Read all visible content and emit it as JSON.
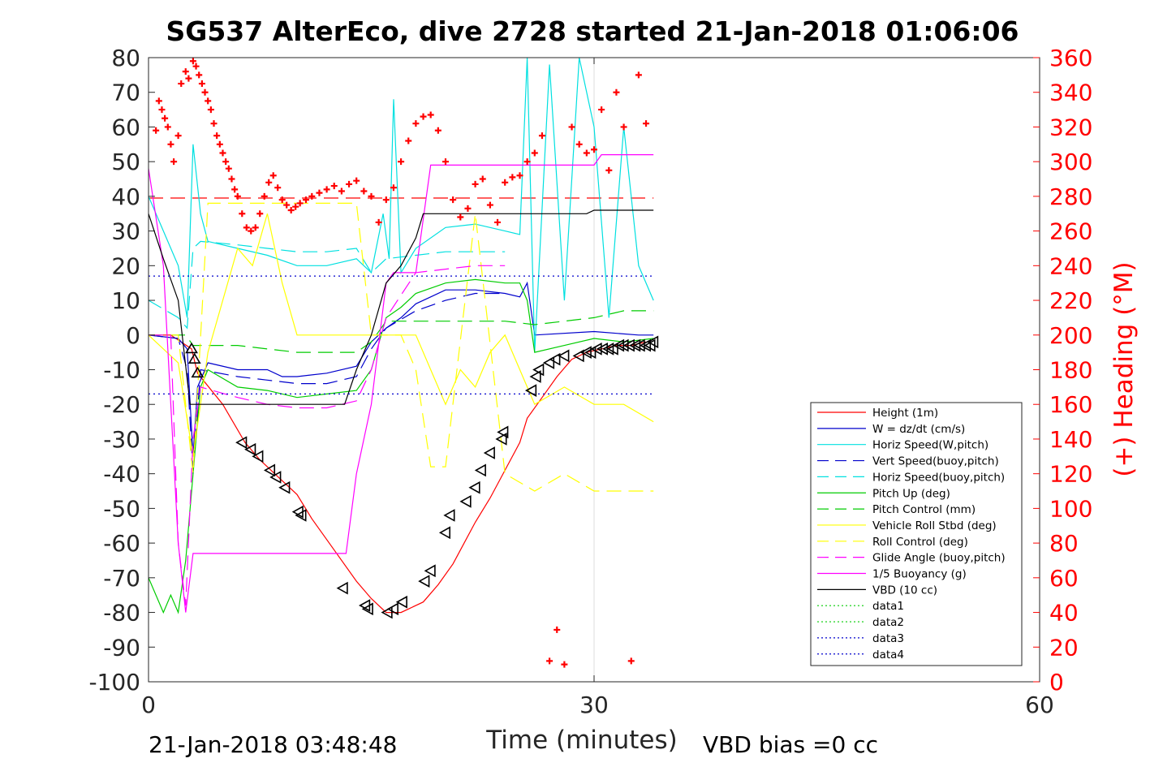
{
  "chart_data": {
    "type": "line",
    "title": "SG537 AlterEco, dive 2728 started 21-Jan-2018 01:06:06",
    "xlabel": "Time (minutes)",
    "ylabel": "",
    "y2label": "(+) Heading (°M)",
    "xlim": [
      0,
      60
    ],
    "ylim": [
      -100,
      80
    ],
    "y2lim": [
      0,
      360
    ],
    "xticks": [
      "0",
      "30",
      "60"
    ],
    "yticks": [
      "80",
      "70",
      "60",
      "50",
      "40",
      "30",
      "20",
      "10",
      "0",
      "-10",
      "-20",
      "-30",
      "-40",
      "-50",
      "-60",
      "-70",
      "-80",
      "-90",
      "-100"
    ],
    "y2ticks": [
      "360",
      "340",
      "320",
      "300",
      "280",
      "260",
      "240",
      "220",
      "200",
      "180",
      "160",
      "140",
      "120",
      "100",
      "80",
      "60",
      "40",
      "20",
      "0"
    ],
    "grid": "x only at 30",
    "legend_position": "bottom-right",
    "footer_left": "21-Jan-2018 03:48:48",
    "footer_right": "VBD bias =0 cc",
    "colors": {
      "red": "#ff0000",
      "blue": "#0000cc",
      "cyan": "#00e0e0",
      "green": "#00cc00",
      "yellow": "#ffff00",
      "magenta": "#ff00ff",
      "black": "#000000"
    },
    "series": [
      {
        "name": "Height (1m)",
        "color": "#ff0000",
        "dash": "solid",
        "x": [
          0,
          1.5,
          2.9,
          3.3,
          5,
          6.5,
          7.5,
          8.5,
          10,
          11,
          12.5,
          14,
          15,
          16,
          17,
          17.5,
          18.5,
          19.5,
          20.5,
          21,
          22,
          23,
          24,
          25,
          25.5,
          26.5,
          27.5,
          28.5,
          29.5,
          30.5,
          31.5,
          32.5,
          33.5
        ],
        "y": [
          0,
          0,
          -4,
          -11,
          -20,
          -31,
          -36,
          -40,
          -46,
          -53,
          -62,
          -71,
          -76,
          -80,
          -80,
          -79,
          -77,
          -72,
          -66,
          -62,
          -54,
          -47,
          -39,
          -31,
          -24,
          -18,
          -12,
          -7,
          -5,
          -4,
          -3,
          -3,
          -2
        ]
      },
      {
        "name": "W = dz/dt (cm/s)",
        "color": "#0000cc",
        "dash": "solid",
        "x": [
          0,
          2,
          2.6,
          3,
          3.3,
          4,
          6,
          8,
          9,
          10,
          12,
          14,
          15,
          16,
          17,
          18,
          19,
          20,
          22,
          24,
          25,
          25.5,
          26,
          30,
          33,
          34
        ],
        "y": [
          0,
          -1,
          -4,
          -35,
          -15,
          -8,
          -10,
          -10,
          -12,
          -12,
          -11,
          -9,
          -2,
          2,
          5,
          9,
          11,
          13,
          13,
          12,
          11,
          15,
          0,
          1,
          0,
          0
        ]
      },
      {
        "name": "Horiz Speed(W,pitch)",
        "color": "#00e0e0",
        "dash": "solid",
        "x": [
          0,
          2,
          2.6,
          3,
          3.5,
          4,
          6,
          8,
          10,
          12,
          14,
          15,
          15.8,
          16.2,
          16.5,
          17,
          18,
          20,
          22,
          24,
          25,
          25.5,
          26,
          27,
          28,
          29,
          30,
          31,
          32,
          33,
          34
        ],
        "y": [
          40,
          20,
          5,
          55,
          35,
          27,
          25,
          23,
          20,
          20,
          22,
          18,
          35,
          22,
          68,
          18,
          25,
          31,
          32,
          30,
          29,
          80,
          -5,
          78,
          10,
          80,
          60,
          5,
          60,
          20,
          10
        ]
      },
      {
        "name": "Vert Speed(buoy,pitch)",
        "color": "#0000cc",
        "dash": "dashed",
        "x": [
          0,
          2,
          2.6,
          3,
          3.5,
          6,
          8,
          10,
          12,
          14,
          15,
          16,
          18,
          20,
          22,
          24
        ],
        "y": [
          0,
          -1,
          -10,
          -40,
          -10,
          -12,
          -13,
          -14,
          -14,
          -12,
          -4,
          2,
          7,
          10,
          12,
          12
        ]
      },
      {
        "name": "Horiz Speed(buoy,pitch)",
        "color": "#00e0e0",
        "dash": "dashed",
        "x": [
          0,
          2,
          2.6,
          3,
          3.5,
          6,
          8,
          10,
          12,
          14,
          15,
          16,
          18,
          20,
          22,
          24
        ],
        "y": [
          10,
          5,
          2,
          25,
          27,
          26,
          25,
          24,
          24,
          25,
          18,
          22,
          23,
          24,
          24,
          24
        ]
      },
      {
        "name": "Pitch Up (deg)",
        "color": "#00cc00",
        "dash": "solid",
        "x": [
          0,
          1,
          1.5,
          2,
          2.5,
          3,
          3.5,
          4,
          6,
          8,
          10,
          12,
          14,
          15,
          16,
          17,
          18,
          20,
          22,
          24,
          25,
          25.5,
          26,
          28,
          30,
          32,
          34
        ],
        "y": [
          -70,
          -80,
          -75,
          -80,
          -65,
          -40,
          -15,
          -10,
          -15,
          -16,
          -18,
          -17,
          -16,
          -10,
          5,
          8,
          12,
          15,
          16,
          15,
          15,
          10,
          -5,
          -3,
          -1,
          -2,
          -1
        ]
      },
      {
        "name": "Pitch Control (mm)",
        "color": "#00cc00",
        "dash": "dashed",
        "x": [
          0,
          2,
          2.5,
          3,
          4,
          6,
          8,
          10,
          12,
          14,
          15,
          16,
          18,
          20,
          22,
          24,
          26,
          28,
          30,
          32,
          34
        ],
        "y": [
          0,
          0,
          0,
          -3,
          -3,
          -3,
          -4,
          -5,
          -5,
          -5,
          -2,
          4,
          4,
          4,
          4,
          4,
          3,
          4,
          5,
          7,
          7
        ]
      },
      {
        "name": "Vehicle Roll Stbd (deg)",
        "color": "#ffff00",
        "dash": "solid",
        "x": [
          0,
          2,
          3,
          4,
          6,
          7,
          8,
          9,
          10,
          10.5,
          12,
          14,
          15,
          16,
          17,
          18,
          19,
          20,
          21,
          22,
          23,
          24,
          25,
          26,
          28,
          30,
          32,
          34
        ],
        "y": [
          0,
          -8,
          -35,
          -5,
          25,
          20,
          35,
          15,
          0,
          0,
          0,
          0,
          0,
          0,
          0,
          0,
          -10,
          -20,
          -10,
          -15,
          -5,
          0,
          -10,
          -20,
          -15,
          -20,
          -20,
          -25
        ]
      },
      {
        "name": "Roll Control (deg)",
        "color": "#ffff00",
        "dash": "dashed",
        "x": [
          0,
          2,
          3,
          4,
          6,
          8,
          10,
          12,
          14,
          15,
          16,
          17,
          18,
          19,
          20,
          22,
          24,
          26,
          28,
          30,
          32,
          34
        ],
        "y": [
          0,
          0,
          -40,
          38,
          38,
          38,
          38,
          38,
          38,
          0,
          0,
          0,
          -10,
          -38,
          -38,
          35,
          -40,
          -45,
          -40,
          -45,
          -45,
          -45
        ]
      },
      {
        "name": "Glide Angle (buoy,pitch)",
        "color": "#ff00ff",
        "dash": "dashed",
        "x": [
          0,
          1.5,
          2,
          2.5,
          3,
          3.5,
          6,
          8,
          10,
          12,
          14,
          15,
          16,
          18,
          20,
          22,
          24
        ],
        "y": [
          0,
          0,
          -60,
          -78,
          -30,
          -15,
          -18,
          -20,
          -21,
          -21,
          -19,
          -10,
          5,
          18,
          19,
          20,
          20
        ]
      },
      {
        "name": "1/5 Buoyancy (g)",
        "color": "#ff00ff",
        "dash": "solid",
        "x": [
          0,
          1,
          2,
          2.5,
          3,
          6,
          10,
          13.3,
          14,
          15,
          16,
          16.5,
          18,
          19,
          22,
          25,
          28,
          30,
          30.5,
          34
        ],
        "y": [
          48,
          20,
          -60,
          -80,
          -63,
          -63,
          -63,
          -63,
          -40,
          -20,
          15,
          18,
          18,
          49,
          49,
          49,
          49,
          49,
          52,
          52
        ]
      },
      {
        "name": "VBD (10 cc)",
        "color": "#000000",
        "dash": "solid",
        "x": [
          0,
          1,
          2,
          2.8,
          4,
          8,
          13.2,
          14,
          15,
          16,
          17,
          18,
          18.5,
          20,
          25,
          29.5,
          30,
          34
        ],
        "y": [
          35,
          22,
          10,
          -20,
          -20,
          -20,
          -20,
          -10,
          0,
          15,
          20,
          28,
          35,
          35,
          35,
          35,
          36,
          36
        ]
      },
      {
        "name": "data1",
        "color": "#00cc00",
        "dash": "dotted",
        "x": [],
        "y": []
      },
      {
        "name": "data2",
        "color": "#00cc00",
        "dash": "dotted",
        "x": [],
        "y": []
      },
      {
        "name": "data3",
        "color": "#0000cc",
        "dash": "dotted",
        "x": [
          0,
          34
        ],
        "y": [
          17,
          17
        ]
      },
      {
        "name": "data4",
        "color": "#0000cc",
        "dash": "dotted",
        "x": [
          0,
          34
        ],
        "y": [
          -17,
          -17
        ]
      }
    ],
    "reference_lines": [
      {
        "axis": "y2",
        "value": 279,
        "color": "#ff0000",
        "dash": "dashed",
        "x": [
          0,
          34
        ]
      }
    ],
    "heading_points": {
      "axis": "y2",
      "color": "#ff0000",
      "x": [
        0.5,
        0.7,
        0.9,
        1.1,
        1.3,
        1.5,
        1.7,
        2.0,
        2.2,
        2.5,
        2.7,
        3.0,
        3.2,
        3.4,
        3.6,
        3.8,
        4.0,
        4.2,
        4.4,
        4.6,
        4.8,
        5.0,
        5.2,
        5.4,
        5.6,
        5.8,
        6.0,
        6.3,
        6.6,
        6.9,
        7.2,
        7.5,
        7.8,
        8.1,
        8.4,
        8.7,
        9.0,
        9.3,
        9.6,
        9.9,
        10.2,
        10.6,
        11.0,
        11.5,
        12.0,
        12.5,
        13.0,
        13.5,
        14.0,
        14.5,
        15.0,
        15.5,
        16.0,
        16.5,
        17.0,
        17.5,
        18.0,
        18.5,
        19.0,
        19.5,
        20.0,
        20.5,
        21.0,
        21.5,
        22.0,
        22.5,
        23.0,
        23.5,
        24.0,
        24.5,
        25.0,
        25.5,
        26.0,
        26.5,
        27.0,
        27.5,
        28.0,
        28.5,
        29.0,
        29.5,
        30.0,
        30.5,
        31.0,
        31.5,
        32.0,
        32.5,
        33.0,
        33.5
      ],
      "y": [
        318,
        335,
        330,
        325,
        320,
        310,
        300,
        315,
        345,
        352,
        348,
        358,
        355,
        350,
        345,
        340,
        335,
        330,
        322,
        315,
        310,
        305,
        300,
        296,
        290,
        284,
        280,
        270,
        262,
        260,
        262,
        270,
        280,
        288,
        292,
        285,
        278,
        275,
        272,
        274,
        276,
        278,
        280,
        282,
        284,
        286,
        283,
        287,
        289,
        283,
        280,
        265,
        278,
        285,
        300,
        312,
        322,
        326,
        327,
        318,
        300,
        278,
        268,
        273,
        287,
        290,
        275,
        265,
        288,
        291,
        292,
        300,
        305,
        315,
        12,
        30,
        10,
        320,
        310,
        305,
        307,
        330,
        295,
        340,
        320,
        12,
        350,
        322
      ]
    },
    "marker_points": {
      "axis": "y",
      "color": "#000000",
      "x": [
        2.9,
        3.1,
        3.3,
        6.3,
        6.9,
        7.4,
        8.2,
        8.6,
        9.2,
        10.1,
        10.3,
        13.1,
        14.6,
        14.8,
        16.1,
        16.5,
        17.1,
        18.6,
        19.0,
        20.0,
        20.3,
        21.4,
        22.0,
        22.4,
        23.0,
        23.8,
        23.9,
        25.8,
        26.1,
        26.3,
        27.0,
        27.4,
        28.0,
        29.0,
        29.5,
        29.8,
        30.2,
        30.6,
        31.0,
        31.3,
        31.7,
        32.0,
        32.4,
        32.8,
        33.1,
        33.5,
        33.8,
        34.0
      ],
      "y": [
        -4,
        -7,
        -11,
        -31,
        -33,
        -35,
        -39,
        -41,
        -44,
        -51,
        -52,
        -73,
        -78,
        -79,
        -80,
        -79,
        -77,
        -71,
        -68,
        -57,
        -52,
        -48,
        -44,
        -39,
        -34,
        -30,
        -28,
        -16,
        -12,
        -10,
        -8,
        -7,
        -6,
        -6,
        -5,
        -5,
        -4,
        -4,
        -4,
        -4,
        -3,
        -3,
        -3,
        -3,
        -3,
        -3,
        -3,
        -2
      ]
    }
  }
}
